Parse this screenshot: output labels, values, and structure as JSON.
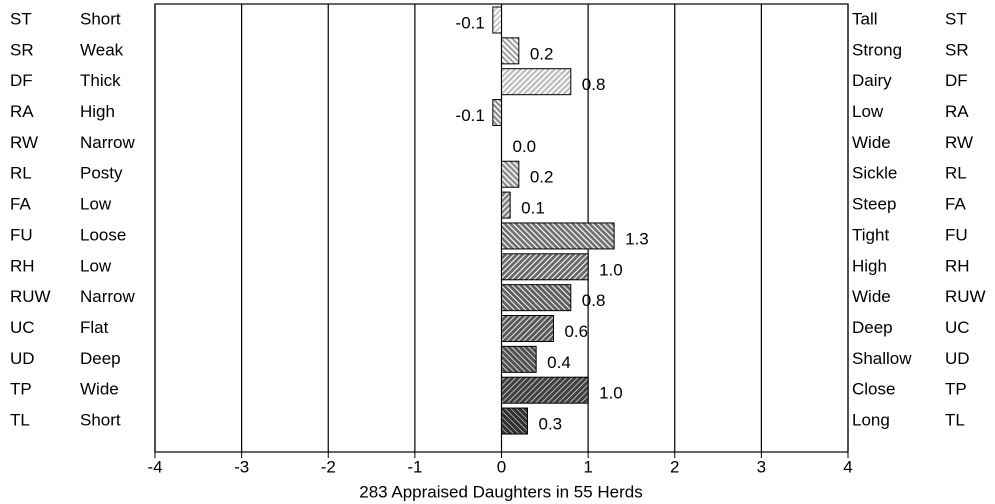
{
  "chart_data": {
    "type": "bar",
    "orientation": "horizontal",
    "xlabel": "283 Appraised Daughters in 55 Herds",
    "categories": [
      "ST",
      "SR",
      "DF",
      "RA",
      "RW",
      "RL",
      "FA",
      "FU",
      "RH",
      "RUW",
      "UC",
      "UD",
      "TP",
      "TL"
    ],
    "left_labels": [
      "Short",
      "Weak",
      "Thick",
      "High",
      "Narrow",
      "Posty",
      "Low",
      "Loose",
      "Low",
      "Narrow",
      "Flat",
      "Deep",
      "Wide",
      "Short"
    ],
    "right_labels": [
      "Tall",
      "Strong",
      "Dairy",
      "Low",
      "Wide",
      "Sickle",
      "Steep",
      "Tight",
      "High",
      "Wide",
      "Deep",
      "Shallow",
      "Close",
      "Long"
    ],
    "values": [
      -0.1,
      0.2,
      0.8,
      -0.1,
      0,
      0.2,
      0.1,
      1.3,
      1,
      0.8,
      0.6,
      0.4,
      1,
      0.3
    ],
    "value_labels": [
      "-0.1",
      "0.2",
      "0.8",
      "-0.1",
      "0.0",
      "0.2",
      "0.1",
      "1.3",
      "1.0",
      "0.8",
      "0.6",
      "0.4",
      "1.0",
      "0.3"
    ],
    "colors": [
      "#c8c8c8",
      "#a0a0a0",
      "#bcbcbc",
      "#8c8c8c",
      "#b0b0b0",
      "#909090",
      "#808080",
      "#707070",
      "#686868",
      "#606060",
      "#585858",
      "#505050",
      "#404040",
      "#303030"
    ],
    "xlim": [
      -4,
      4
    ],
    "xticks": [
      -4,
      -3,
      -2,
      -1,
      0,
      1,
      2,
      3,
      4
    ],
    "grid": true
  }
}
